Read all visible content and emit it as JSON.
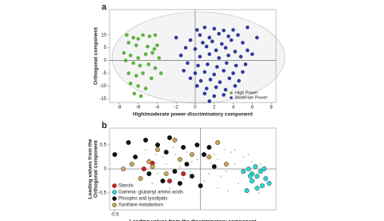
{
  "chart_data": [
    {
      "type": "scatter",
      "label": "a",
      "xlabel": "High/moderate power discriminatory component",
      "ylabel": [
        "Orthogonal component"
      ],
      "xlim": [
        -9,
        8.5
      ],
      "ylim": [
        -16.5,
        20
      ],
      "xticks": [
        -8,
        -6,
        -4,
        -2,
        0,
        2,
        4,
        6,
        8
      ],
      "yticks": [
        -15,
        -10,
        -5,
        0,
        5,
        10
      ],
      "legend": "lower right",
      "series": [
        {
          "name": "High Power",
          "color": "#5fb043",
          "x": [
            -7.2,
            -6.5,
            -6,
            -5.5,
            -4.8,
            -4.2,
            -7,
            -6.2,
            -5,
            -4,
            -7.5,
            -6.8,
            -6,
            -5.2,
            -4.5,
            -3.8,
            -7.3,
            -6.5,
            -5.8,
            -4.9,
            -4.2,
            -7,
            -6.2,
            -5.5,
            -4.6,
            -6.8,
            -6,
            -5.2,
            -6.4,
            -5.7,
            -3.6,
            -4.3
          ],
          "y": [
            10,
            9,
            8.5,
            10,
            9.5,
            10,
            7,
            6,
            5.5,
            6,
            3,
            2,
            1,
            2.5,
            3,
            1,
            0,
            -1,
            -2,
            -1.5,
            -3,
            -5,
            -6,
            -5,
            -7,
            -9,
            -10,
            -11,
            -13,
            -14,
            -5,
            4.5
          ]
        },
        {
          "name": "Moderate Power",
          "color": "#2e3a9c",
          "x": [
            0.2,
            1,
            2,
            3,
            4,
            5.5,
            0.5,
            1.5,
            2.5,
            3.5,
            4.5,
            -0.5,
            0.8,
            1.8,
            2.8,
            3.8,
            5,
            -1,
            0,
            1.2,
            2.2,
            3.2,
            4.2,
            5.5,
            -1.5,
            0.5,
            1.5,
            2.5,
            3.5,
            4.8,
            6,
            -0.8,
            0.3,
            1.3,
            2.3,
            3.3,
            4.3,
            5.3,
            -1.2,
            0,
            1,
            2,
            3,
            4,
            5,
            -0.5,
            0.6,
            1.6,
            2.6,
            3.6,
            4.6,
            0.2,
            1.2,
            2.2,
            3.2,
            4.2,
            1,
            2,
            3,
            1.5,
            -2,
            6.5
          ],
          "y": [
            12,
            13,
            12.5,
            11.8,
            12,
            13,
            10,
            9,
            10.5,
            9.5,
            10,
            8,
            7,
            7.5,
            6.5,
            8,
            7,
            5,
            4.5,
            5.5,
            4,
            5,
            3.5,
            4,
            2,
            1.5,
            2.5,
            1,
            2,
            1.5,
            2.5,
            -1,
            -2,
            -1.5,
            -2.5,
            -1,
            -2,
            -1.5,
            -4,
            -5,
            -4.5,
            -5.5,
            -4,
            -5,
            -4.5,
            -7,
            -8,
            -7.5,
            -8.5,
            -7,
            -8,
            -10,
            -11,
            -10.5,
            -11.5,
            -10,
            -13,
            -14,
            -13.5,
            -16,
            9,
            9
          ]
        }
      ]
    },
    {
      "type": "scatter",
      "label": "b",
      "xlabel": "Loading values from the discriminatory component",
      "ylabel": [
        "Loading values from the",
        "Orthogonal component"
      ],
      "xlim": [
        -0.53,
        0.44
      ],
      "ylim": [
        -0.85,
        0.85
      ],
      "xticks": [
        -0.5
      ],
      "yticks": [
        -0.5,
        0,
        0.5
      ],
      "legend": "lower left",
      "series": [
        {
          "color": "#a9cf96",
          "x": [
            -0.3,
            -0.25,
            -0.2,
            -0.15,
            -0.1,
            -0.05,
            0,
            0.05,
            0.1,
            0.15,
            0.2,
            0.25,
            0.3,
            0.35,
            -0.28,
            -0.18,
            -0.08,
            0.02,
            0.12,
            0.22,
            0.32,
            -0.22,
            -0.12,
            -0.02,
            0.08,
            0.18,
            0.28,
            0.38,
            -0.32,
            -0.16,
            0,
            0.16,
            0.34,
            -0.06,
            0.06,
            0.14,
            0.24,
            -0.26,
            0.1,
            0.2
          ],
          "y": [
            0.2,
            -0.1,
            0.1,
            0.3,
            -0.2,
            0.15,
            0.05,
            -0.1,
            0.2,
            -0.05,
            0.1,
            0.25,
            0.15,
            0.1,
            -0.3,
            -0.4,
            0.35,
            -0.25,
            -0.15,
            -0.3,
            -0.2,
            0.25,
            0.05,
            0.2,
            0.3,
            0.35,
            0.3,
            0.05,
            0.4,
            0.45,
            -0.5,
            -0.45,
            -0.5,
            -0.05,
            0.12,
            0.4,
            -0.1,
            0.3,
            -0.4,
            0.4
          ]
        },
        {
          "name": "Sterols",
          "color": "#cc2222",
          "x": [
            -0.33,
            -0.28,
            -0.18,
            -0.1
          ],
          "y": [
            0.0,
            0.12,
            -0.25,
            -0.1
          ]
        },
        {
          "name": "Gamma- glutamyl amino acids",
          "color": "#2dd4d4",
          "x": [
            0.25,
            0.28,
            0.3,
            0.32,
            0.33,
            0.35,
            0.37,
            0.38,
            0.3,
            0.36,
            0.27,
            0.33,
            0.4,
            0.29
          ],
          "y": [
            -0.05,
            0.0,
            -0.1,
            0.05,
            -0.15,
            -0.05,
            0.0,
            -0.2,
            -0.25,
            -0.35,
            -0.45,
            -0.4,
            -0.3,
            -0.15
          ]
        },
        {
          "name": "Phospho and lysolipids",
          "color": "#111111",
          "x": [
            -0.5,
            -0.42,
            -0.38,
            -0.32,
            -0.25,
            -0.2,
            -0.18,
            -0.1,
            -0.08,
            -0.02,
            0.02,
            0.05,
            0.08,
            -0.15,
            -0.3,
            -0.12,
            -0.05,
            0.0,
            -0.22
          ],
          "y": [
            0.3,
            0.55,
            0.25,
            0.6,
            0.5,
            0.35,
            0.65,
            0.45,
            0.1,
            0.5,
            0.3,
            0.45,
            0.05,
            -0.05,
            -0.1,
            -0.3,
            -0.15,
            -0.35,
            -0.25
          ]
        },
        {
          "name": "Xanthine metabolism",
          "color": "#c8a45a",
          "x": [
            -0.45,
            -0.4,
            -0.3,
            -0.25,
            -0.15,
            -0.12,
            -0.2,
            -0.05,
            0.05,
            0.1,
            0.15,
            -0.35,
            -0.28
          ],
          "y": [
            0.0,
            0.1,
            0.15,
            0.4,
            0.6,
            0.2,
            -0.1,
            0.3,
            0.25,
            0.55,
            0.1,
            -0.2,
            0.05
          ]
        }
      ]
    }
  ]
}
